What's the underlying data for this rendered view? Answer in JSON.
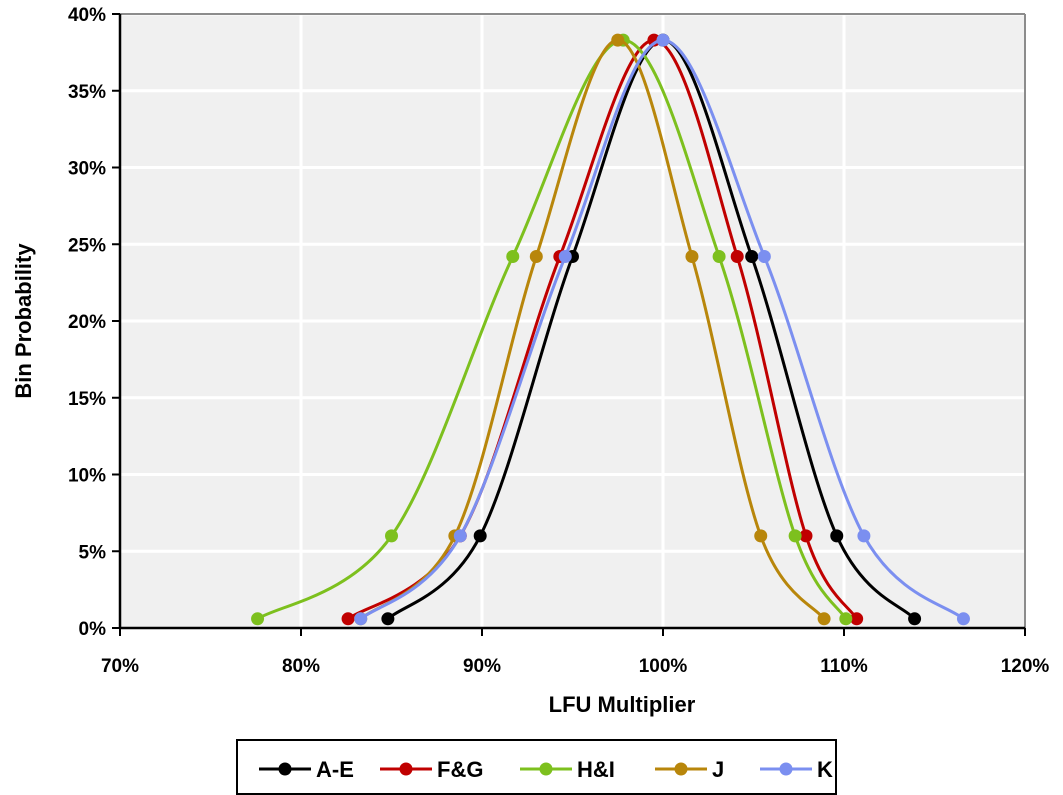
{
  "chart_data": {
    "type": "line",
    "xlabel": "LFU Multiplier",
    "ylabel": "Bin Probability",
    "xlim": [
      0.7,
      1.2
    ],
    "ylim": [
      0,
      0.4
    ],
    "x_ticks": [
      "70%",
      "80%",
      "90%",
      "100%",
      "110%",
      "120%"
    ],
    "y_ticks": [
      "0%",
      "5%",
      "10%",
      "15%",
      "20%",
      "25%",
      "30%",
      "35%",
      "40%"
    ],
    "grid": true,
    "legend_position": "bottom",
    "series": [
      {
        "name": "A-E",
        "color": "#000000",
        "points": [
          [
            0.848,
            0.006
          ],
          [
            0.899,
            0.06
          ],
          [
            0.95,
            0.242
          ],
          [
            1.0,
            0.383
          ],
          [
            1.049,
            0.242
          ],
          [
            1.096,
            0.06
          ],
          [
            1.139,
            0.006
          ]
        ]
      },
      {
        "name": "F&G",
        "color": "#c00000",
        "points": [
          [
            0.826,
            0.006
          ],
          [
            0.888,
            0.06
          ],
          [
            0.943,
            0.242
          ],
          [
            0.995,
            0.383
          ],
          [
            1.041,
            0.242
          ],
          [
            1.079,
            0.06
          ],
          [
            1.107,
            0.006
          ]
        ]
      },
      {
        "name": "H&I",
        "color": "#7dc01e",
        "points": [
          [
            0.776,
            0.006
          ],
          [
            0.85,
            0.06
          ],
          [
            0.917,
            0.242
          ],
          [
            0.978,
            0.383
          ],
          [
            1.031,
            0.242
          ],
          [
            1.073,
            0.06
          ],
          [
            1.101,
            0.006
          ]
        ]
      },
      {
        "name": "J",
        "color": "#b8860b",
        "points": [
          [
            0.833,
            0.006
          ],
          [
            0.885,
            0.06
          ],
          [
            0.93,
            0.242
          ],
          [
            0.975,
            0.383
          ],
          [
            1.016,
            0.242
          ],
          [
            1.054,
            0.06
          ],
          [
            1.089,
            0.006
          ]
        ]
      },
      {
        "name": "K",
        "color": "#7b8ff0",
        "points": [
          [
            0.833,
            0.006
          ],
          [
            0.888,
            0.06
          ],
          [
            0.946,
            0.242
          ],
          [
            1.0,
            0.383
          ],
          [
            1.056,
            0.242
          ],
          [
            1.111,
            0.06
          ],
          [
            1.166,
            0.006
          ]
        ]
      }
    ]
  }
}
